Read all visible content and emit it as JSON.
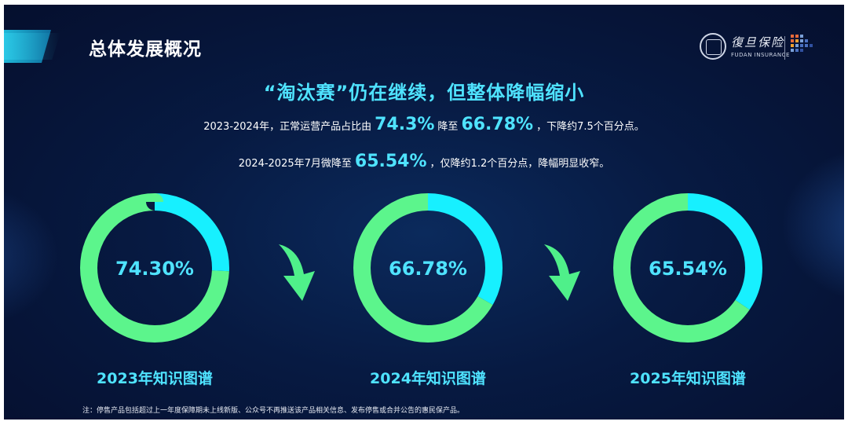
{
  "header": {
    "title": "总体发展概况",
    "logo_cn": "復旦保险",
    "logo_en": "FUDAN INSURANCE"
  },
  "headline": "“淘汰赛”仍在继续，但整体降幅缩小",
  "summary": {
    "line1": {
      "part1": "2023-2024年，正常运营产品占比由",
      "value1": "74.3%",
      "part2": "降至",
      "value2": "66.78%",
      "part3": "，下降约7.5个百分点。"
    },
    "line2": {
      "part1": "2024-2025年7月微降至",
      "value1": "65.54%",
      "part2": "，仅降约1.2个百分点，降幅明显收窄。"
    }
  },
  "colors": {
    "primary": "#5cf58c",
    "secondary": "#17f0ff",
    "accent_text": "#4fe3ff",
    "arrow": "#4ff08a"
  },
  "chart_data": [
    {
      "type": "pie",
      "title": "2023年知识图谱",
      "center_label": "74.30%",
      "values": [
        74.3,
        25.7
      ]
    },
    {
      "type": "pie",
      "title": "2024年知识图谱",
      "center_label": "66.78%",
      "values": [
        66.78,
        33.22
      ]
    },
    {
      "type": "pie",
      "title": "2025年知识图谱",
      "center_label": "65.54%",
      "values": [
        65.54,
        34.46
      ]
    }
  ],
  "footnote": "注：停售产品包括超过上一年度保障期未上线新版、公众号不再推送该产品相关信息、发布停售或合并公告的惠民保产品。"
}
